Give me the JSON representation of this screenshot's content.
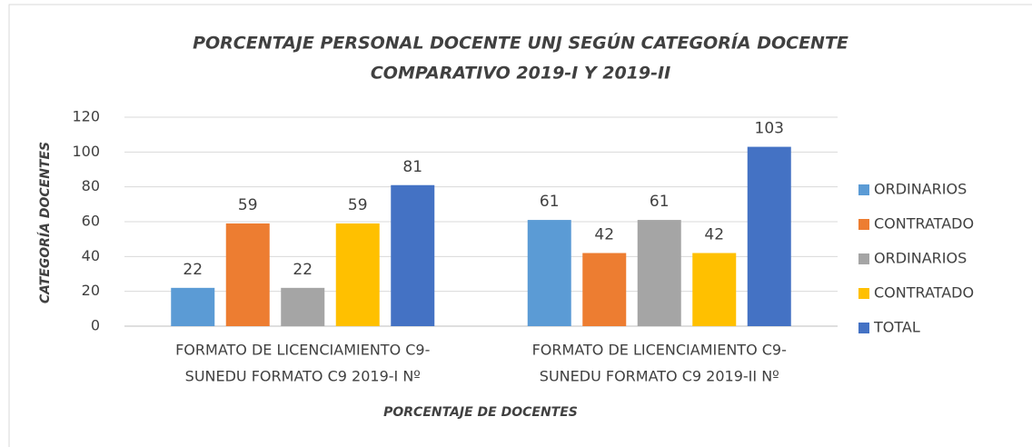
{
  "chart_data": {
    "type": "bar",
    "title": [
      "PORCENTAJE PERSONAL DOCENTE UNJ SEGÚN CATEGORÍA DOCENTE",
      "COMPARATIVO 2019-I Y 2019-II"
    ],
    "x_label": "PORCENTAJE DE DOCENTES",
    "y_label": "CATEGORÍA DOCENTES",
    "categories": [
      [
        "FORMATO DE LICENCIAMIENTO C9-",
        "SUNEDU FORMATO C9 2019-I Nº"
      ],
      [
        "FORMATO DE LICENCIAMIENTO C9-",
        "SUNEDU FORMATO C9 2019-II Nº"
      ]
    ],
    "series": [
      {
        "name": "ORDINARIOS",
        "color": "#5b9bd5",
        "values": [
          22,
          61
        ]
      },
      {
        "name": "CONTRATADO",
        "color": "#ed7d31",
        "values": [
          59,
          42
        ]
      },
      {
        "name": "ORDINARIOS",
        "color": "#a5a5a5",
        "values": [
          22,
          61
        ]
      },
      {
        "name": "CONTRATADO",
        "color": "#ffc000",
        "values": [
          59,
          42
        ]
      },
      {
        "name": "TOTAL",
        "color": "#4472c4",
        "values": [
          81,
          103
        ]
      }
    ],
    "ylim": [
      0,
      120
    ],
    "yticks": [
      0,
      20,
      40,
      60,
      80,
      100,
      120
    ],
    "grid": true,
    "legend": "right"
  }
}
